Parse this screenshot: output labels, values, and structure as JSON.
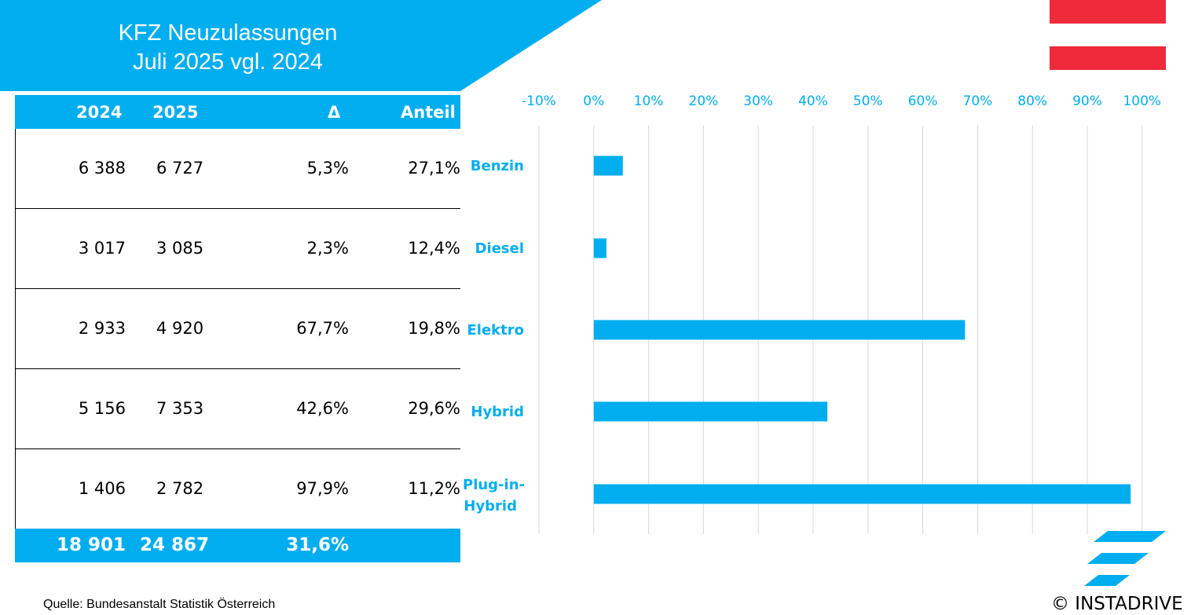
{
  "header": {
    "title_line1": "KFZ Neuzulassungen",
    "title_line2": "Juli 2025 vgl. 2024"
  },
  "colors": {
    "accent": "#00aeef",
    "flag_red": "#ee2a3b"
  },
  "table": {
    "columns": [
      "2024",
      "2025",
      "Δ",
      "Anteil"
    ],
    "rows": [
      [
        "6 388",
        "6 727",
        "5,3%",
        "27,1%"
      ],
      [
        "3 017",
        "3 085",
        "2,3%",
        "12,4%"
      ],
      [
        "2 933",
        "4 920",
        "67,7%",
        "19,8%"
      ],
      [
        "5 156",
        "7 353",
        "42,6%",
        "29,6%"
      ],
      [
        "1 406",
        "2 782",
        "97,9%",
        "11,2%"
      ]
    ],
    "total": [
      "18 901",
      "24 867",
      "31,6%"
    ]
  },
  "chart_data": {
    "type": "bar",
    "orientation": "horizontal",
    "categories": [
      "Benzin",
      "Diesel",
      "Elektro",
      "Hybrid",
      "Plug-in-Hybrid"
    ],
    "values": [
      5.3,
      2.3,
      67.7,
      42.6,
      97.9
    ],
    "xlim": [
      -10,
      100
    ],
    "tick_labels": [
      "-10%",
      "0%",
      "10%",
      "20%",
      "30%",
      "40%",
      "50%",
      "60%",
      "70%",
      "80%",
      "90%",
      "100%"
    ],
    "grid": true,
    "axis_position": "top",
    "bar_color": "#00aeef"
  },
  "footer": {
    "source": "Quelle: Bundesanstalt Statistik Österreich",
    "copyright": "© INSTADRIVE"
  }
}
